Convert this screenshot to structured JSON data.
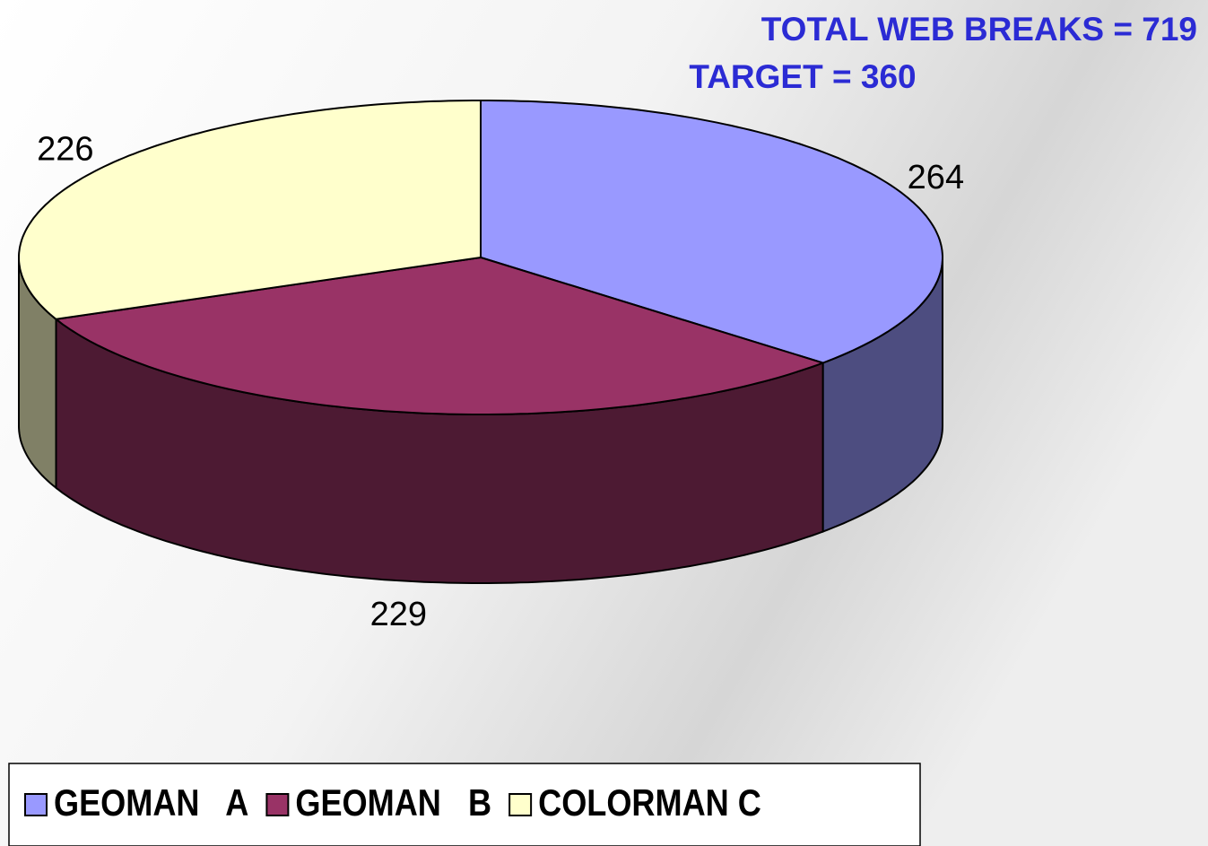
{
  "chart_data": {
    "type": "pie3d",
    "annotations": [
      "TOTAL WEB BREAKS = 719",
      "TARGET = 360"
    ],
    "categories": [
      "GEOMAN   A",
      "GEOMAN   B",
      "COLORMAN C"
    ],
    "values": [
      264,
      229,
      226
    ],
    "colors": [
      "#9999ff",
      "#993366",
      "#ffffcc"
    ],
    "legend": "bottom-left"
  }
}
